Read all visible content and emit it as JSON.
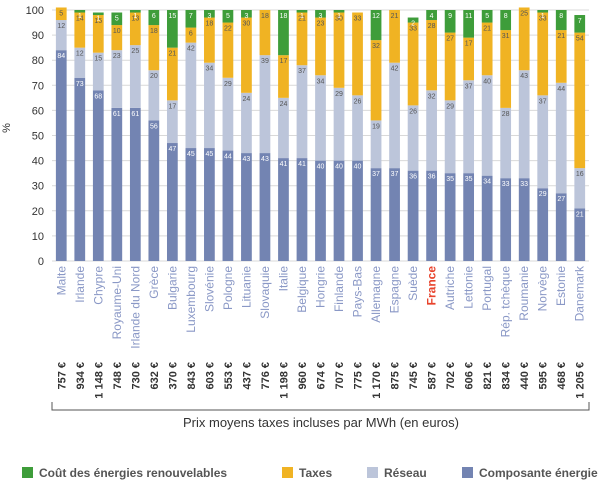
{
  "chart_data": {
    "type": "bar",
    "stacked": true,
    "ylabel": "%",
    "ylim": [
      0,
      100
    ],
    "yticks": [
      "0",
      "10",
      "20",
      "30",
      "40",
      "50",
      "60",
      "70",
      "80",
      "90",
      "100"
    ],
    "categories": [
      "Malte",
      "Irlande",
      "Chypre",
      "Royaume-Uni",
      "Irlande du Nord",
      "Grèce",
      "Bulgarie",
      "Luxembourg",
      "Slovénie",
      "Pologne",
      "Lituanie",
      "Slovaquie",
      "Italie",
      "Belgique",
      "Hongrie",
      "Finlande",
      "Pays-Bas",
      "Allemagne",
      "Espagne",
      "Suède",
      "France",
      "Autriche",
      "Lettonie",
      "Portugal",
      "Rép. tchèque",
      "Roumanie",
      "Norvège",
      "Estonie",
      "Danemark"
    ],
    "highlight_category": "France",
    "prices": [
      "757 €",
      "934 €",
      "1 148 €",
      "748 €",
      "730 €",
      "632 €",
      "370 €",
      "843 €",
      "603 €",
      "553 €",
      "437 €",
      "776 €",
      "1 198 €",
      "960 €",
      "674 €",
      "707 €",
      "775 €",
      "1 170 €",
      "875 €",
      "745 €",
      "587 €",
      "702 €",
      "606 €",
      "821 €",
      "834 €",
      "440 €",
      "595 €",
      "468 €",
      "1 205 €"
    ],
    "xlabel": "Prix moyens taxes incluses par MWh (en euros)",
    "series": [
      {
        "name": "Composante énergie",
        "color": "#7384b2",
        "values": [
          84,
          73,
          68,
          61,
          61,
          56,
          47,
          45,
          45,
          44,
          43,
          43,
          41,
          41,
          40,
          40,
          40,
          37,
          37,
          36,
          36,
          35,
          35,
          34,
          33,
          33,
          29,
          27,
          21
        ]
      },
      {
        "name": "Réseau",
        "color": "#bcc5da",
        "values": [
          12,
          12,
          15,
          23,
          25,
          20,
          17,
          42,
          34,
          29,
          24,
          39,
          24,
          37,
          34,
          29,
          26,
          19,
          42,
          26,
          32,
          29,
          37,
          40,
          28,
          43,
          37,
          44,
          16
        ]
      },
      {
        "name": "Taxes",
        "color": "#f0b323",
        "values": [
          5,
          14,
          15,
          10,
          13,
          18,
          21,
          6,
          18,
          22,
          30,
          18,
          17,
          21,
          23,
          30,
          33,
          32,
          21,
          33,
          28,
          27,
          17,
          21,
          31,
          25,
          33,
          21,
          54
        ]
      },
      {
        "name": "Coût des énergies renouvelables",
        "color": "#3e9d3a",
        "values": [
          null,
          1,
          1,
          5,
          1,
          6,
          15,
          7,
          3,
          5,
          3,
          null,
          18,
          1,
          3,
          1,
          null,
          12,
          null,
          2,
          4,
          9,
          11,
          5,
          8,
          null,
          1,
          8,
          7
        ]
      }
    ],
    "legend_order": [
      "Coût des énergies renouvelables",
      "Taxes",
      "Réseau",
      "Composante énergie"
    ],
    "legend_position": "bottom",
    "grid": true,
    "colors": {
      "highlight": "#e8432c",
      "category_text": "#8a98c6",
      "grid": "#d9d9d9",
      "data_label": "#555555",
      "data_label_light": "#ffffff"
    }
  }
}
